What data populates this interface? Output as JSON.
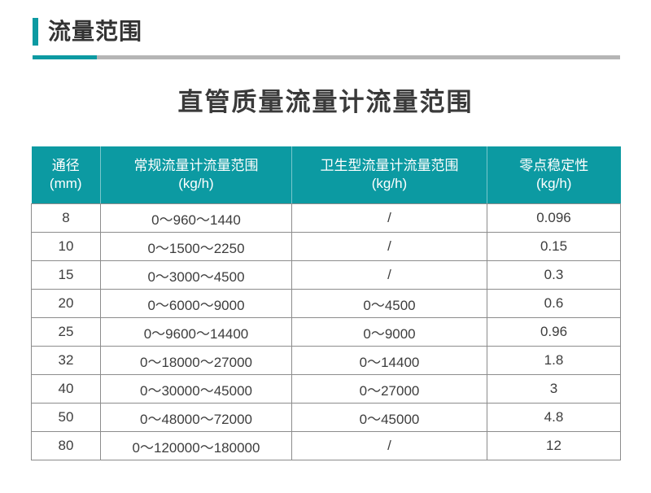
{
  "colors": {
    "accent_teal": "#0c9aa2",
    "rule_gray": "#b5b5b5",
    "table_border_gray": "#8c8c8c",
    "header_text": "#ffffff",
    "body_text": "#3d3d3d"
  },
  "section": {
    "title": "流量范围"
  },
  "page_title": "直管质量流量计流量范围",
  "table": {
    "columns": [
      {
        "label": "通径",
        "unit": "(mm)"
      },
      {
        "label": "常规流量计流量范围",
        "unit": "(kg/h)"
      },
      {
        "label": "卫生型流量计流量范围",
        "unit": "(kg/h)"
      },
      {
        "label": "零点稳定性",
        "unit": "(kg/h)"
      }
    ],
    "rows": [
      [
        "8",
        "0～960～1440",
        "/",
        "0.096"
      ],
      [
        "10",
        "0～1500～2250",
        "/",
        "0.15"
      ],
      [
        "15",
        "0～3000～4500",
        "/",
        "0.3"
      ],
      [
        "20",
        "0～6000～9000",
        "0～4500",
        "0.6"
      ],
      [
        "25",
        "0～9600～14400",
        "0～9000",
        "0.96"
      ],
      [
        "32",
        "0～18000～27000",
        "0～14400",
        "1.8"
      ],
      [
        "40",
        "0～30000～45000",
        "0～27000",
        "3"
      ],
      [
        "50",
        "0～48000～72000",
        "0～45000",
        "4.8"
      ],
      [
        "80",
        "0～120000～180000",
        "/",
        "12"
      ]
    ]
  }
}
